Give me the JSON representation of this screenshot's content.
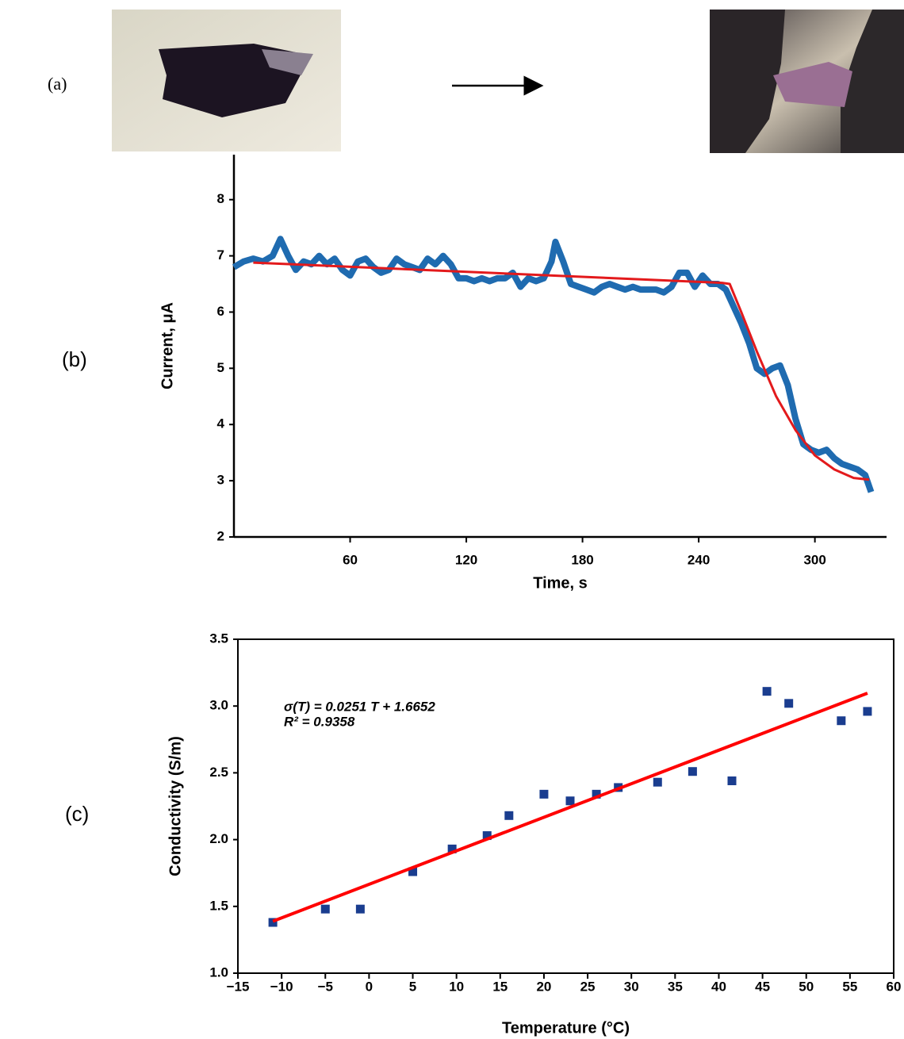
{
  "panel_labels": [
    "(a)",
    "(b)",
    "(c)"
  ],
  "chart_data": [
    {
      "type": "line",
      "x_label": "Time, s",
      "y_label": "Current, μA",
      "xlim": [
        0,
        337
      ],
      "ylim": [
        2,
        8.8
      ],
      "xticks": [
        60,
        120,
        180,
        240,
        300
      ],
      "yticks": [
        2,
        3,
        4,
        5,
        6,
        7,
        8
      ],
      "series": [
        {
          "color": "#1f6bb0",
          "x": [
            0,
            5,
            10,
            15,
            20,
            24,
            28,
            32,
            36,
            40,
            44,
            48,
            52,
            56,
            60,
            64,
            68,
            72,
            76,
            80,
            84,
            88,
            92,
            96,
            100,
            104,
            108,
            112,
            116,
            120,
            124,
            128,
            132,
            136,
            140,
            144,
            148,
            152,
            156,
            160,
            164,
            166,
            170,
            174,
            178,
            182,
            186,
            190,
            194,
            198,
            202,
            206,
            210,
            214,
            218,
            222,
            226,
            230,
            234,
            238,
            242,
            246,
            250,
            254,
            258,
            262,
            266,
            270,
            274,
            278,
            282,
            286,
            290,
            294,
            298,
            302,
            306,
            310,
            314,
            318,
            322,
            326,
            329
          ],
          "values": [
            6.8,
            6.9,
            6.95,
            6.9,
            7.0,
            7.3,
            7.0,
            6.75,
            6.9,
            6.85,
            7.0,
            6.85,
            6.95,
            6.75,
            6.65,
            6.9,
            6.95,
            6.8,
            6.7,
            6.75,
            6.95,
            6.85,
            6.8,
            6.75,
            6.95,
            6.85,
            7.0,
            6.85,
            6.6,
            6.6,
            6.55,
            6.6,
            6.55,
            6.6,
            6.6,
            6.7,
            6.45,
            6.6,
            6.55,
            6.6,
            6.9,
            7.25,
            6.9,
            6.5,
            6.45,
            6.4,
            6.35,
            6.45,
            6.5,
            6.45,
            6.4,
            6.45,
            6.4,
            6.4,
            6.4,
            6.35,
            6.45,
            6.7,
            6.7,
            6.45,
            6.65,
            6.5,
            6.5,
            6.4,
            6.1,
            5.8,
            5.45,
            5.0,
            4.9,
            5.0,
            5.05,
            4.7,
            4.1,
            3.65,
            3.55,
            3.5,
            3.55,
            3.4,
            3.3,
            3.25,
            3.2,
            3.1,
            2.8
          ],
          "width": 8
        },
        {
          "color": "#e31a1c",
          "x": [
            10,
            252,
            256,
            262,
            270,
            280,
            290,
            300,
            310,
            320,
            328
          ],
          "values": [
            6.88,
            6.52,
            6.5,
            6.0,
            5.3,
            4.5,
            3.9,
            3.45,
            3.2,
            3.05,
            3.02
          ],
          "width": 3
        }
      ]
    },
    {
      "type": "scatter",
      "x_label": "Temperature (°C)",
      "y_label": "Conductivity (S/m)",
      "xlim": [
        -15,
        60
      ],
      "ylim": [
        1,
        3.5
      ],
      "xticks": [
        {
          "value": -15,
          "label": "−15"
        },
        {
          "value": -10,
          "label": "−10"
        },
        {
          "value": -5,
          "label": "−5"
        },
        0,
        5,
        10,
        15,
        20,
        25,
        30,
        35,
        40,
        45,
        50,
        55,
        60
      ],
      "yticks": [
        {
          "value": 1,
          "label": "1.0"
        },
        1.5,
        {
          "value": 2,
          "label": "2.0"
        },
        2.5,
        {
          "value": 3,
          "label": "3.0"
        },
        3.5
      ],
      "annotations": [
        "σ(T) = 0.0251 T + 1.6652",
        "R² = 0.9358"
      ],
      "series": [
        {
          "color": "#1a3d8f",
          "style": "markers",
          "x": [
            -11,
            -5,
            -1,
            5,
            9.5,
            13.5,
            16,
            20,
            23,
            26,
            28.5,
            33,
            37,
            41.5,
            45.5,
            48,
            54,
            57
          ],
          "values": [
            1.38,
            1.48,
            1.48,
            1.76,
            1.93,
            2.03,
            2.18,
            2.34,
            2.29,
            2.34,
            2.39,
            2.43,
            2.51,
            2.44,
            3.11,
            3.02,
            2.89,
            2.96
          ]
        },
        {
          "color": "#ff0000",
          "style": "line",
          "x": [
            -11,
            57
          ],
          "values": [
            1.389,
            3.096
          ],
          "width": 4
        }
      ]
    }
  ]
}
